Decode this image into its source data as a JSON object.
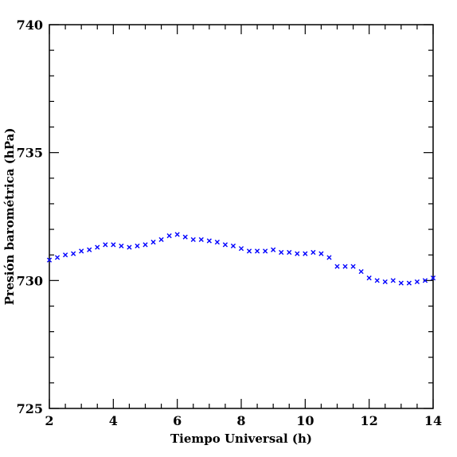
{
  "chart_data": {
    "type": "scatter",
    "title": "",
    "xlabel": "Tiempo Universal (h)",
    "ylabel": "Presión barométrica (hPa)",
    "xlim": [
      2,
      14
    ],
    "ylim": [
      725,
      740
    ],
    "x_ticks": [
      "2",
      "4",
      "6",
      "8",
      "10",
      "12",
      "14"
    ],
    "y_ticks": [
      "725",
      "730",
      "735",
      "740"
    ],
    "grid": false,
    "legend": "none",
    "marker": "x",
    "marker_color": "#0000ff",
    "series": [
      {
        "points": [
          [
            2.0,
            730.8
          ],
          [
            2.25,
            730.9
          ],
          [
            2.5,
            731.0
          ],
          [
            2.75,
            731.05
          ],
          [
            3.0,
            731.15
          ],
          [
            3.25,
            731.2
          ],
          [
            3.5,
            731.3
          ],
          [
            3.75,
            731.4
          ],
          [
            4.0,
            731.4
          ],
          [
            4.25,
            731.35
          ],
          [
            4.5,
            731.3
          ],
          [
            4.75,
            731.35
          ],
          [
            5.0,
            731.4
          ],
          [
            5.25,
            731.5
          ],
          [
            5.5,
            731.6
          ],
          [
            5.75,
            731.75
          ],
          [
            6.0,
            731.8
          ],
          [
            6.25,
            731.7
          ],
          [
            6.5,
            731.6
          ],
          [
            6.75,
            731.6
          ],
          [
            7.0,
            731.55
          ],
          [
            7.25,
            731.5
          ],
          [
            7.5,
            731.4
          ],
          [
            7.75,
            731.35
          ],
          [
            8.0,
            731.25
          ],
          [
            8.25,
            731.15
          ],
          [
            8.5,
            731.15
          ],
          [
            8.75,
            731.15
          ],
          [
            9.0,
            731.2
          ],
          [
            9.25,
            731.1
          ],
          [
            9.5,
            731.1
          ],
          [
            9.75,
            731.05
          ],
          [
            10.0,
            731.05
          ],
          [
            10.25,
            731.1
          ],
          [
            10.5,
            731.05
          ],
          [
            10.75,
            730.9
          ],
          [
            11.0,
            730.55
          ],
          [
            11.25,
            730.55
          ],
          [
            11.5,
            730.55
          ],
          [
            11.75,
            730.35
          ],
          [
            12.0,
            730.1
          ],
          [
            12.25,
            730.0
          ],
          [
            12.5,
            729.95
          ],
          [
            12.75,
            730.0
          ],
          [
            13.0,
            729.9
          ],
          [
            13.25,
            729.9
          ],
          [
            13.5,
            729.95
          ],
          [
            13.75,
            730.0
          ],
          [
            14.0,
            730.1
          ]
        ]
      }
    ]
  }
}
